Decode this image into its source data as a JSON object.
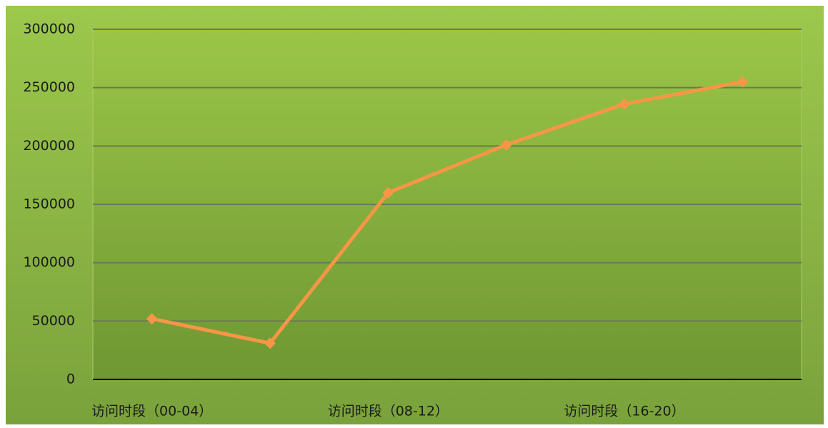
{
  "chart_data": {
    "type": "line",
    "categories": [
      "访问时段（00-04）",
      null,
      "访问时段（08-12）",
      null,
      "访问时段（16-20）",
      null
    ],
    "series": [
      {
        "color": "#f79646",
        "values": [
          52000,
          31000,
          160000,
          201000,
          236000,
          255000
        ]
      }
    ],
    "ylim": [
      0,
      300000
    ],
    "yticks": [
      0,
      50000,
      100000,
      150000,
      200000,
      250000,
      300000
    ],
    "grid": true
  }
}
